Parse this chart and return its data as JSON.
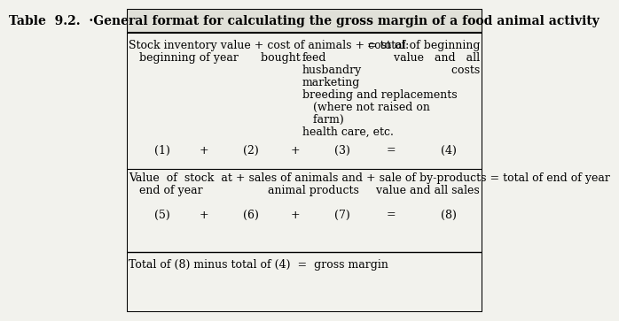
{
  "title": "Table  9.2.  ·General format for calculating the gross margin of a food animal activity",
  "bg_color": "#f2f2ed",
  "border_color": "#000000",
  "title_fontsize": 10.0,
  "body_fontsize": 9.0,
  "footer": "Total of (8) minus total of (4)  =  gross margin"
}
